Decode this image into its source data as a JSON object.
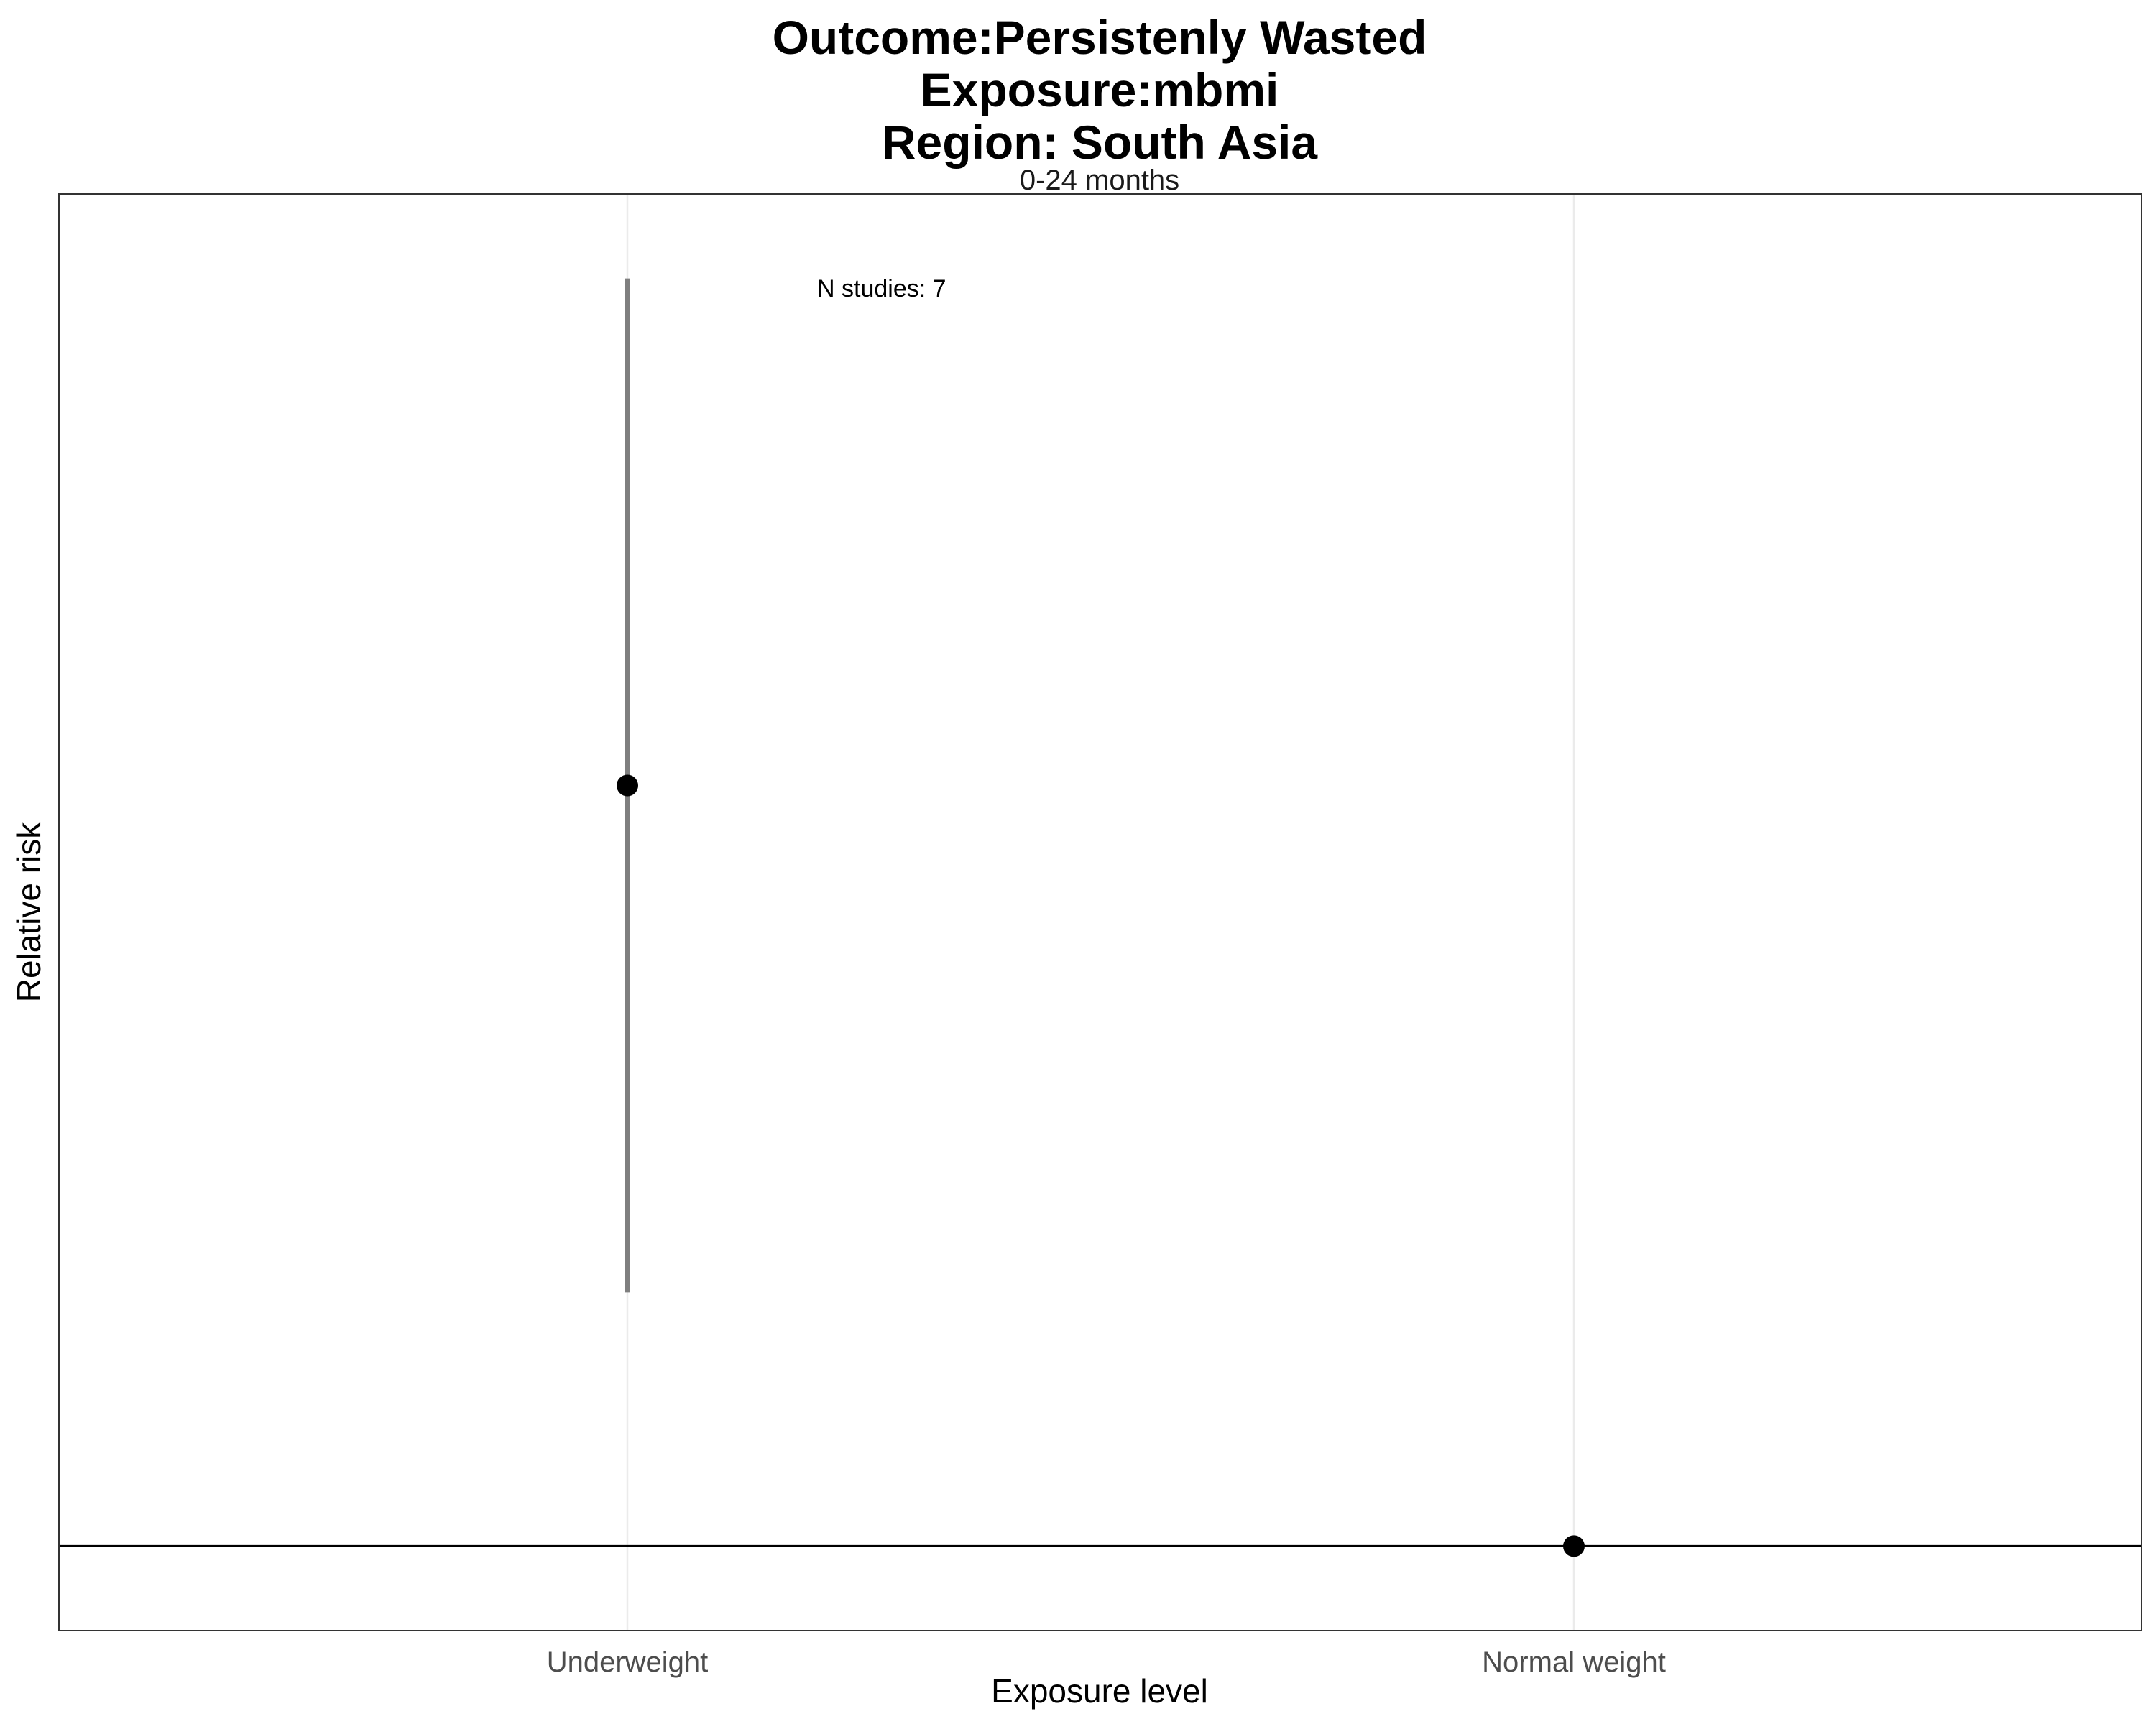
{
  "chart_data": {
    "type": "scatter",
    "title": [
      "Outcome:Persistenly Wasted",
      "Exposure:mbmi",
      "Region: South Asia"
    ],
    "facet_label": "0-24 months",
    "xlabel": "Exposure level",
    "ylabel": "Relative risk",
    "categories": [
      "Underweight",
      "Normal weight"
    ],
    "points": [
      {
        "category": "Underweight",
        "estimate": 1.9,
        "ci_lower": 1.3,
        "ci_upper": 2.5
      },
      {
        "category": "Normal weight",
        "estimate": 1.0
      }
    ],
    "reference_line": 1,
    "annotation": "N studies: 7",
    "y_tick_labels_shown": false,
    "grid": "vertical major lines only",
    "legend": "none",
    "colors": {
      "point": "#000000",
      "error_bar": "#7f7f7f",
      "reference_line": "#000000",
      "panel_border": "#333333",
      "grid": "#ebebeb"
    }
  }
}
